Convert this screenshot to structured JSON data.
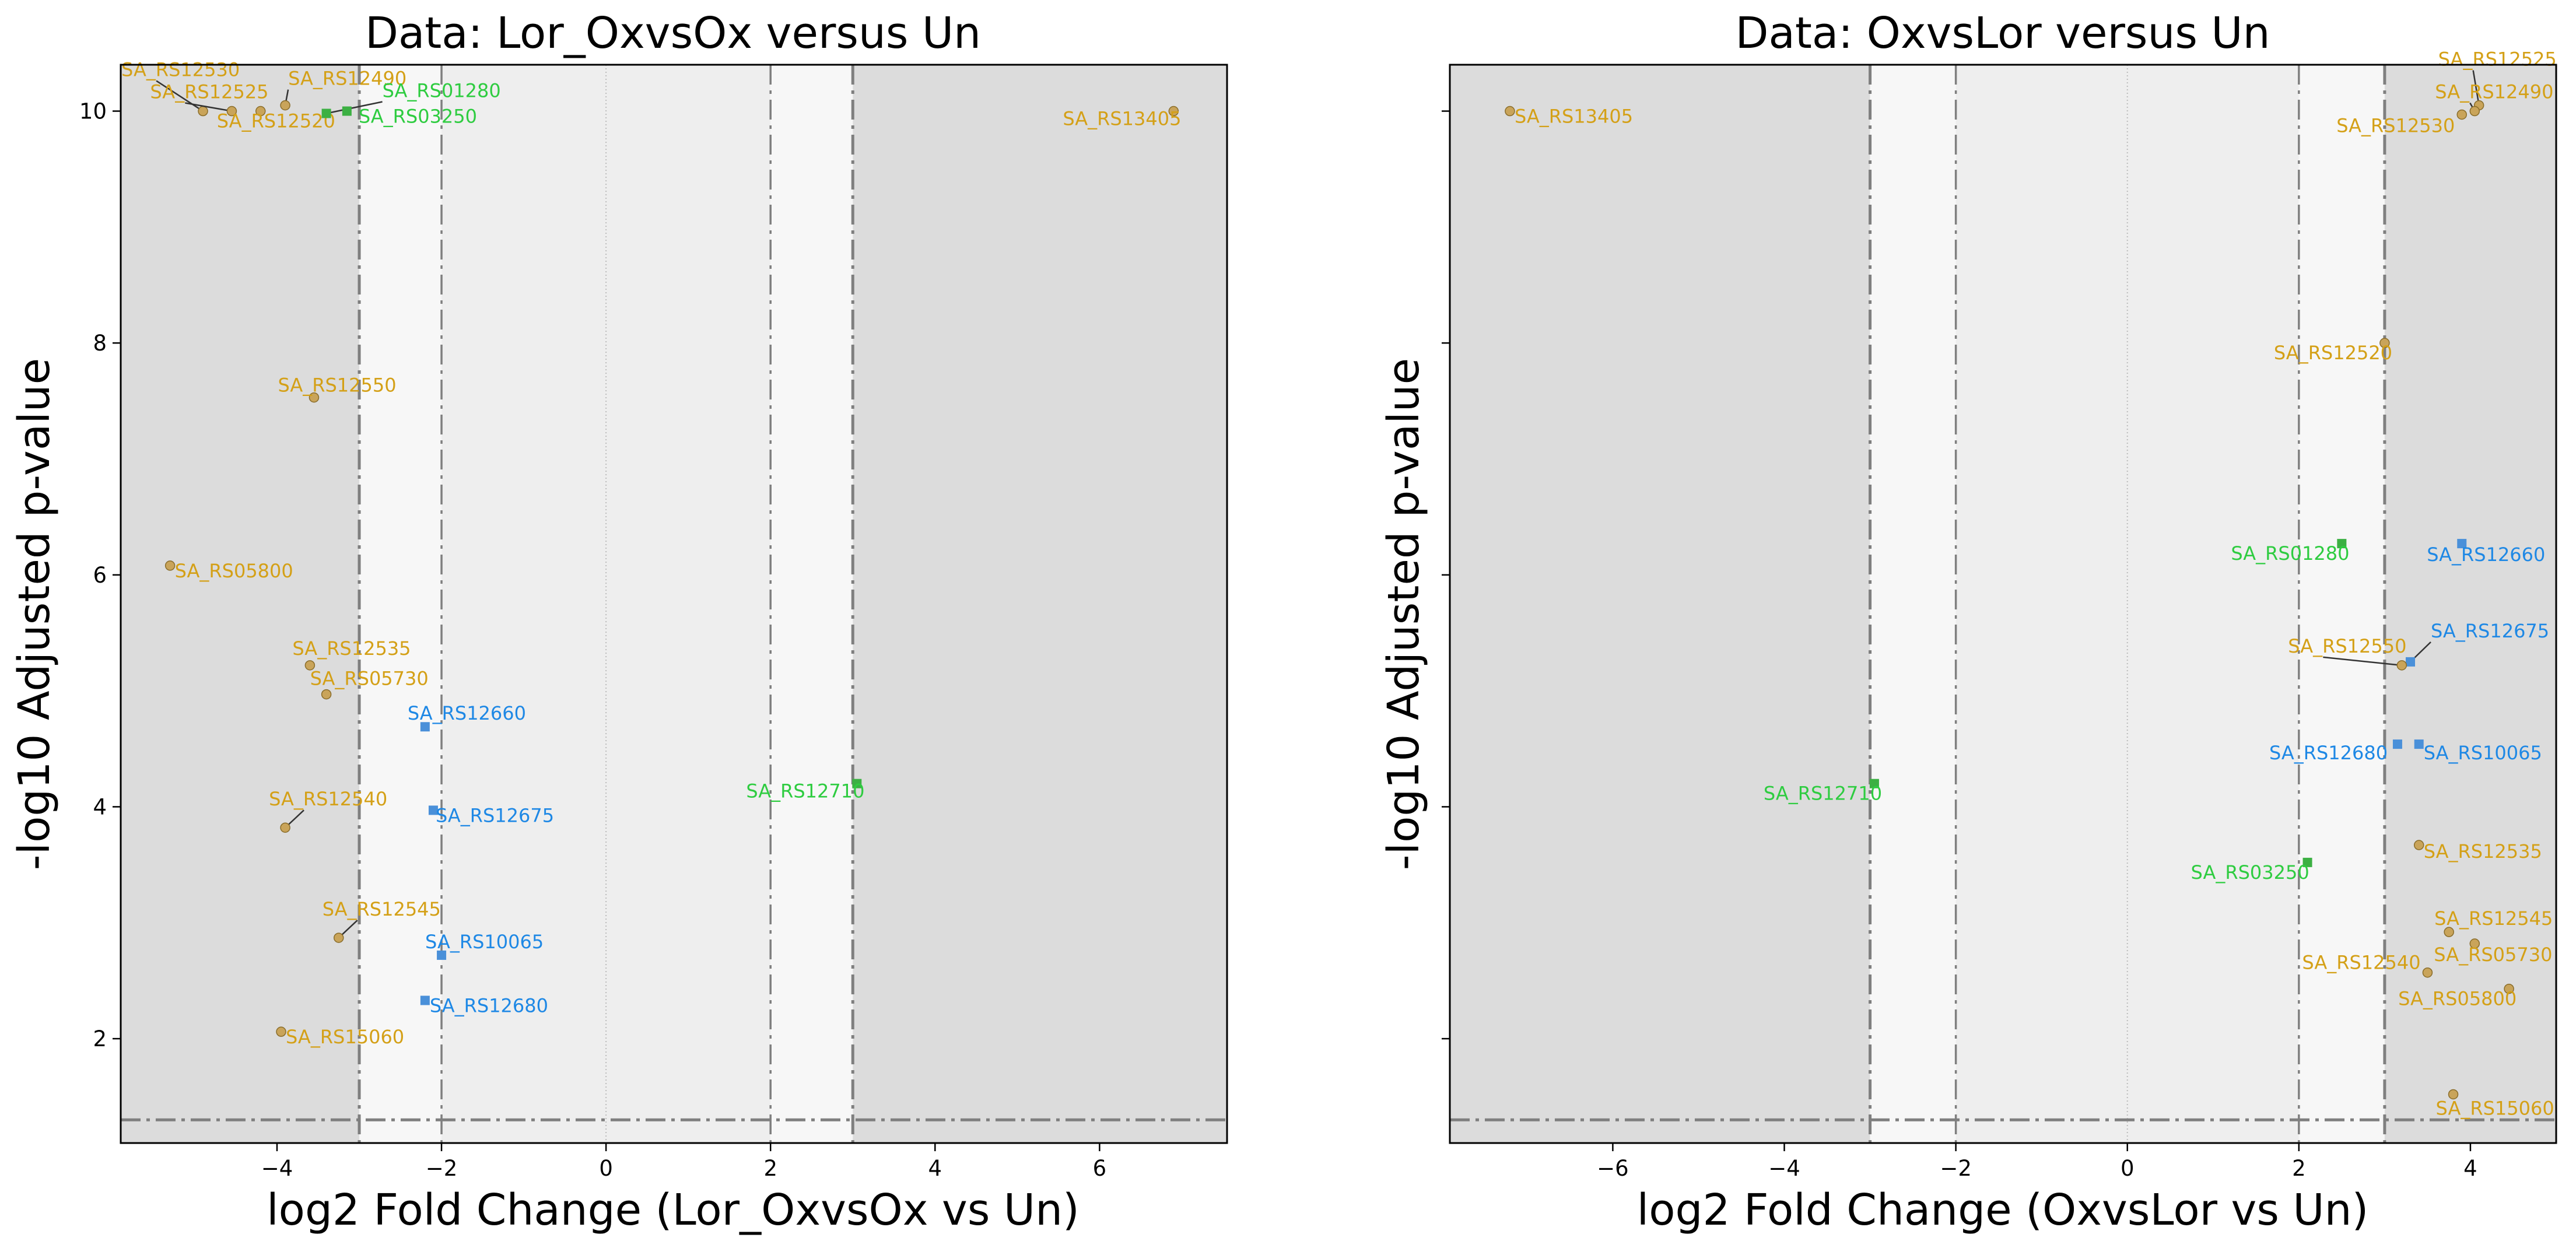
{
  "colors": {
    "gold": "#d4a017",
    "point_gold": "#c9a45a",
    "green": "#2ecc40",
    "point_green": "#3cb043",
    "blue": "#1e88e5",
    "point_blue": "#4a90d9",
    "region_dark": "#dcdcdc",
    "region_mid": "#eeeeee",
    "region_light": "#f7f7f7",
    "threshold_line": "#7f7f7f"
  },
  "chart_data": [
    {
      "type": "scatter",
      "title": "Data: Lor_OxvsOx versus Un",
      "xlabel": "log2 Fold Change (Lor_OxvsOx vs Un)",
      "ylabel": "-log10 Adjusted p-value",
      "xlim": [
        -5.9,
        7.55
      ],
      "ylim": [
        1.1,
        10.4
      ],
      "xticks": [
        -4,
        -2,
        0,
        2,
        4,
        6
      ],
      "yticks": [
        2,
        4,
        6,
        8,
        10
      ],
      "fold_change_thresholds": [
        -3,
        -2,
        2,
        3
      ],
      "pvalue_threshold": 1.3,
      "grid": false,
      "points": [
        {
          "label": "SA_RS12530",
          "x": -4.9,
          "y": 10.0,
          "group": "gold"
        },
        {
          "label": "SA_RS12525",
          "x": -4.55,
          "y": 10.0,
          "group": "gold"
        },
        {
          "label": "SA_RS12520",
          "x": -4.2,
          "y": 10.0,
          "group": "gold"
        },
        {
          "label": "SA_RS12490",
          "x": -3.9,
          "y": 10.05,
          "group": "gold"
        },
        {
          "label": "SA_RS01280",
          "x": -3.4,
          "y": 9.98,
          "group": "green"
        },
        {
          "label": "SA_RS03250",
          "x": -3.15,
          "y": 10.0,
          "group": "green"
        },
        {
          "label": "SA_RS13405",
          "x": 6.9,
          "y": 10.0,
          "group": "gold"
        },
        {
          "label": "SA_RS12550",
          "x": -3.55,
          "y": 7.53,
          "group": "gold"
        },
        {
          "label": "SA_RS05800",
          "x": -5.3,
          "y": 6.08,
          "group": "gold"
        },
        {
          "label": "SA_RS12535",
          "x": -3.6,
          "y": 5.22,
          "group": "gold"
        },
        {
          "label": "SA_RS05730",
          "x": -3.4,
          "y": 4.97,
          "group": "gold"
        },
        {
          "label": "SA_RS12660",
          "x": -2.2,
          "y": 4.69,
          "group": "blue"
        },
        {
          "label": "SA_RS12710",
          "x": 3.05,
          "y": 4.2,
          "group": "green"
        },
        {
          "label": "SA_RS12675",
          "x": -2.1,
          "y": 3.97,
          "group": "blue"
        },
        {
          "label": "SA_RS12540",
          "x": -3.9,
          "y": 3.82,
          "group": "gold"
        },
        {
          "label": "SA_RS12545",
          "x": -3.25,
          "y": 2.87,
          "group": "gold"
        },
        {
          "label": "SA_RS10065",
          "x": -2.0,
          "y": 2.72,
          "group": "blue"
        },
        {
          "label": "SA_RS12680",
          "x": -2.2,
          "y": 2.33,
          "group": "blue"
        },
        {
          "label": "SA_RS15060",
          "x": -3.95,
          "y": 2.06,
          "group": "gold"
        }
      ]
    },
    {
      "type": "scatter",
      "title": "Data: OxvsLor versus Un",
      "xlabel": "log2 Fold Change (OxvsLor vs Un)",
      "ylabel": "-log10 Adjusted p-value",
      "xlim": [
        -7.9,
        5.0
      ],
      "ylim": [
        1.1,
        10.4
      ],
      "xticks": [
        -6,
        -4,
        -2,
        0,
        2,
        4
      ],
      "yticks": [
        2,
        4,
        6,
        8,
        10
      ],
      "fold_change_thresholds": [
        -3,
        -2,
        2,
        3
      ],
      "pvalue_threshold": 1.3,
      "grid": false,
      "points": [
        {
          "label": "SA_RS13405",
          "x": -7.2,
          "y": 10.0,
          "group": "gold"
        },
        {
          "label": "SA_RS12525",
          "x": 4.1,
          "y": 10.05,
          "group": "gold"
        },
        {
          "label": "SA_RS12490",
          "x": 4.05,
          "y": 10.0,
          "group": "gold"
        },
        {
          "label": "SA_RS12530",
          "x": 3.9,
          "y": 9.97,
          "group": "gold"
        },
        {
          "label": "SA_RS12520",
          "x": 3.0,
          "y": 8.0,
          "group": "gold"
        },
        {
          "label": "SA_RS01280",
          "x": 2.5,
          "y": 6.27,
          "group": "green"
        },
        {
          "label": "SA_RS12660",
          "x": 3.9,
          "y": 6.27,
          "group": "blue"
        },
        {
          "label": "SA_RS12675",
          "x": 3.3,
          "y": 5.25,
          "group": "blue"
        },
        {
          "label": "SA_RS12550",
          "x": 3.2,
          "y": 5.22,
          "group": "gold"
        },
        {
          "label": "SA_RS12680",
          "x": 3.15,
          "y": 4.54,
          "group": "blue"
        },
        {
          "label": "SA_RS10065",
          "x": 3.4,
          "y": 4.54,
          "group": "blue"
        },
        {
          "label": "SA_RS12710",
          "x": -2.95,
          "y": 4.2,
          "group": "green"
        },
        {
          "label": "SA_RS12535",
          "x": 3.4,
          "y": 3.67,
          "group": "gold"
        },
        {
          "label": "SA_RS03250",
          "x": 2.1,
          "y": 3.52,
          "group": "green"
        },
        {
          "label": "SA_RS12545",
          "x": 3.75,
          "y": 2.92,
          "group": "gold"
        },
        {
          "label": "SA_RS05730",
          "x": 4.05,
          "y": 2.82,
          "group": "gold"
        },
        {
          "label": "SA_RS12540",
          "x": 3.5,
          "y": 2.57,
          "group": "gold"
        },
        {
          "label": "SA_RS05800",
          "x": 4.45,
          "y": 2.43,
          "group": "gold"
        },
        {
          "label": "SA_RS15060",
          "x": 3.8,
          "y": 1.52,
          "group": "gold"
        }
      ]
    }
  ]
}
